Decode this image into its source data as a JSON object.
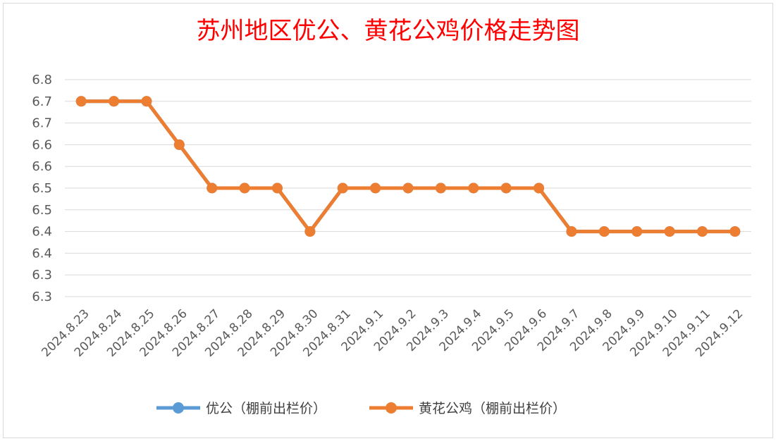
{
  "chart_data": {
    "type": "line",
    "title": "苏州地区优公、黄花公鸡价格走势图",
    "xlabel": "",
    "ylabel": "",
    "categories": [
      "2024.8.23",
      "2024.8.24",
      "2024.8.25",
      "2024.8.26",
      "2024.8.27",
      "2024.8.28",
      "2024.8.29",
      "2024.8.30",
      "2024.8.31",
      "2024.9.1",
      "2024.9.2",
      "2024.9.3",
      "2024.9.4",
      "2024.9.5",
      "2024.9.6",
      "2024.9.7",
      "2024.9.8",
      "2024.9.9",
      "2024.9.10",
      "2024.9.11",
      "2024.9.12"
    ],
    "series": [
      {
        "name": "优公（棚前出栏价）",
        "color": "#5b9bd5",
        "values": [
          6.7,
          6.7,
          6.7,
          6.6,
          6.5,
          6.5,
          6.5,
          6.4,
          6.5,
          6.5,
          6.5,
          6.5,
          6.5,
          6.5,
          6.5,
          6.4,
          6.4,
          6.4,
          6.4,
          6.4,
          6.4
        ]
      },
      {
        "name": "黄花公鸡（棚前出栏价）",
        "color": "#ed7d31",
        "values": [
          6.7,
          6.7,
          6.7,
          6.6,
          6.5,
          6.5,
          6.5,
          6.4,
          6.5,
          6.5,
          6.5,
          6.5,
          6.5,
          6.5,
          6.5,
          6.4,
          6.4,
          6.4,
          6.4,
          6.4,
          6.4
        ]
      }
    ],
    "yticks": [
      "6.3",
      "6.3",
      "6.4",
      "6.4",
      "6.5",
      "6.5",
      "6.6",
      "6.6",
      "6.7",
      "6.7",
      "6.8"
    ],
    "ylim": [
      6.25,
      6.75
    ],
    "grid": true,
    "legend": "bottom"
  }
}
